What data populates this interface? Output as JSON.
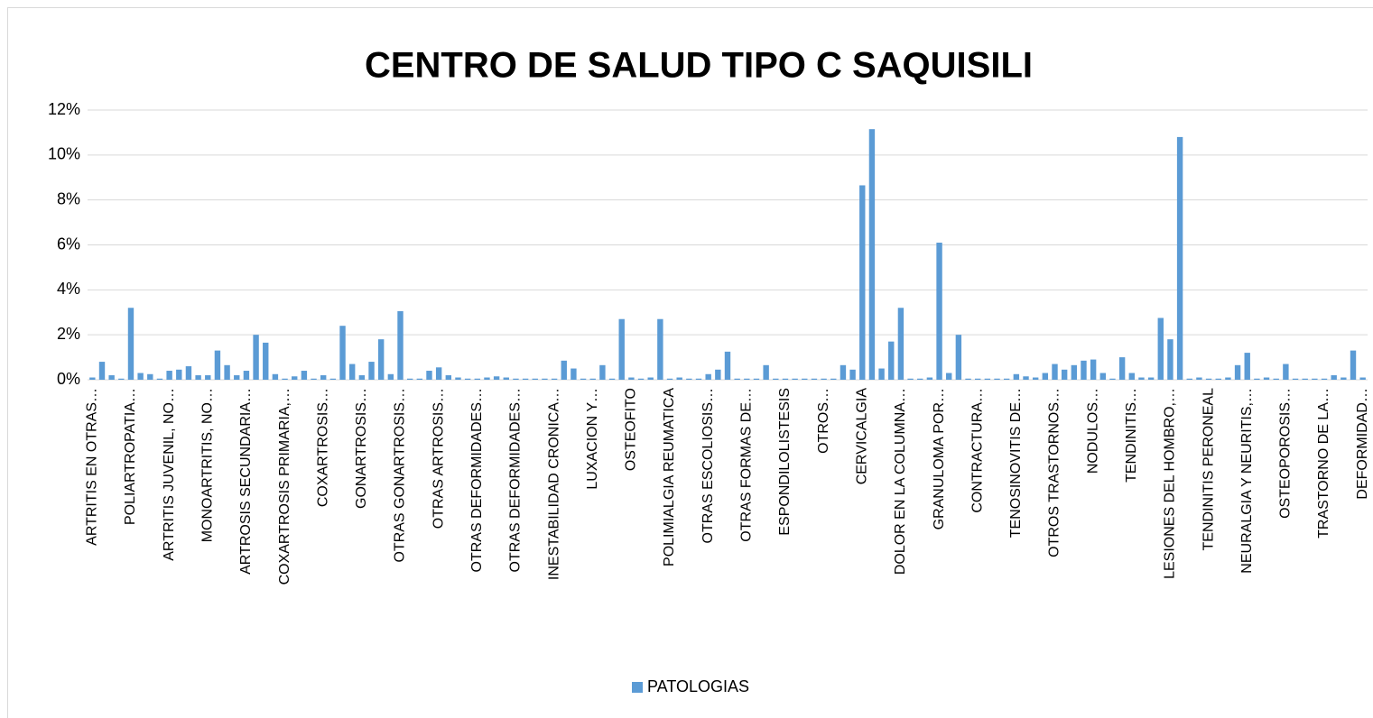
{
  "chart_data": {
    "type": "bar",
    "title": "CENTRO DE SALUD TIPO C SAQUISILI",
    "categories": [
      "ARTRITIS EN OTRAS…",
      null,
      null,
      null,
      "POLIARTROPATIA…",
      null,
      null,
      null,
      "ARTRITIS JUVENIL, NO…",
      null,
      null,
      null,
      "MONOARTRITIS, NO…",
      null,
      null,
      null,
      "ARTROSIS SECUNDARIA…",
      null,
      null,
      null,
      "COXARTROSIS PRIMARIA,…",
      null,
      null,
      null,
      "COXARTROSIS…",
      null,
      null,
      null,
      "GONARTROSIS…",
      null,
      null,
      null,
      "OTRAS GONARTROSIS…",
      null,
      null,
      null,
      "OTRAS ARTROSIS…",
      null,
      null,
      null,
      "OTRAS DEFORMIDADES…",
      null,
      null,
      null,
      "OTRAS DEFORMIDADES…",
      null,
      null,
      null,
      "INESTABILIDAD CRONICA…",
      null,
      null,
      null,
      "LUXACION Y…",
      null,
      null,
      null,
      "OSTEOFITO",
      null,
      null,
      null,
      "POLIMIALGIA REUMATICA",
      null,
      null,
      null,
      "OTRAS ESCOLIOSIS…",
      null,
      null,
      null,
      "OTRAS FORMAS DE…",
      null,
      null,
      null,
      "ESPONDILOLISTESIS",
      null,
      null,
      null,
      "OTROS…",
      null,
      null,
      null,
      "CERVICALGIA",
      null,
      null,
      null,
      "DOLOR EN LA COLUMNA…",
      null,
      null,
      null,
      "GRANULOMA POR…",
      null,
      null,
      null,
      "CONTRACTURA…",
      null,
      null,
      null,
      "TENOSINOVITIS DE…",
      null,
      null,
      null,
      "OTROS TRASTORNOS…",
      null,
      null,
      null,
      "NODULOS…",
      null,
      null,
      null,
      "TENDINITIS…",
      null,
      null,
      null,
      "LESIONES DEL HOMBRO,…",
      null,
      null,
      null,
      "TENDINITIS PERONEAL",
      null,
      null,
      null,
      "NEURALGIA Y NEURITIS,…",
      null,
      null,
      null,
      "OSTEOPOROSIS…",
      null,
      null,
      null,
      "TRASTORNO DE LA…",
      null,
      null,
      null,
      "DEFORMIDAD…"
    ],
    "series": [
      {
        "name": "PATOLOGIAS",
        "color": "#5b9bd5",
        "values": [
          0.1,
          0.8,
          0.2,
          0.05,
          3.2,
          0.3,
          0.25,
          0.05,
          0.4,
          0.45,
          0.6,
          0.2,
          0.2,
          1.3,
          0.65,
          0.2,
          0.4,
          2.0,
          1.65,
          0.25,
          0.05,
          0.15,
          0.4,
          0.05,
          0.2,
          0.05,
          2.4,
          0.7,
          0.2,
          0.8,
          1.8,
          0.25,
          3.05,
          0.05,
          0.05,
          0.4,
          0.55,
          0.2,
          0.1,
          0.05,
          0.05,
          0.1,
          0.15,
          0.1,
          0.05,
          0.05,
          0.05,
          0.05,
          0.05,
          0.85,
          0.5,
          0.05,
          0.05,
          0.65,
          0.05,
          2.7,
          0.1,
          0.05,
          0.1,
          2.7,
          0.05,
          0.1,
          0.05,
          0.05,
          0.25,
          0.45,
          1.25,
          0.05,
          0.05,
          0.05,
          0.65,
          0.05,
          0.05,
          0.05,
          0.05,
          0.05,
          0.05,
          0.05,
          0.65,
          0.45,
          8.65,
          11.15,
          0.5,
          1.7,
          3.2,
          0.05,
          0.05,
          0.1,
          6.1,
          0.3,
          2.0,
          0.05,
          0.05,
          0.05,
          0.05,
          0.05,
          0.25,
          0.15,
          0.1,
          0.3,
          0.7,
          0.45,
          0.65,
          0.85,
          0.9,
          0.3,
          0.05,
          1.0,
          0.3,
          0.1,
          0.1,
          2.75,
          1.8,
          10.8,
          0.05,
          0.1,
          0.05,
          0.05,
          0.1,
          0.65,
          1.2,
          0.05,
          0.1,
          0.05,
          0.7,
          0.05,
          0.05,
          0.05,
          0.05,
          0.2,
          0.1,
          1.3,
          0.1
        ]
      }
    ],
    "ylim": [
      0,
      12
    ],
    "yticks": [
      {
        "value": 0,
        "label": "0%"
      },
      {
        "value": 2,
        "label": "2%"
      },
      {
        "value": 4,
        "label": "4%"
      },
      {
        "value": 6,
        "label": "6%"
      },
      {
        "value": 8,
        "label": "8%"
      },
      {
        "value": 10,
        "label": "10%"
      },
      {
        "value": 12,
        "label": "12%"
      }
    ],
    "grid": true,
    "legend": "bottom"
  }
}
